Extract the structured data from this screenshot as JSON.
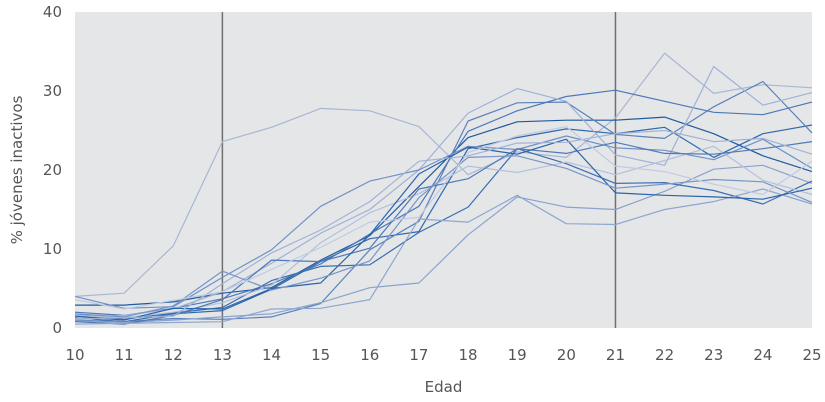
{
  "chart_data": {
    "type": "line",
    "xlabel": "Edad",
    "ylabel": "% jóvenes inactivos",
    "xlim": [
      10,
      25
    ],
    "ylim": [
      0,
      40
    ],
    "x_ticks": [
      10,
      11,
      12,
      13,
      14,
      15,
      16,
      17,
      18,
      19,
      20,
      21,
      22,
      23,
      24,
      25
    ],
    "y_ticks": [
      0,
      10,
      20,
      30,
      40
    ],
    "grid": false,
    "background": "#e5e6e8",
    "reference_lines_x": [
      13,
      21
    ],
    "reference_line_color": "#707070",
    "x": [
      10,
      11,
      12,
      13,
      14,
      15,
      16,
      17,
      18,
      19,
      20,
      21,
      22,
      23,
      24,
      25
    ],
    "series": [
      {
        "color": "#a8b7d3",
        "values": [
          4.0,
          4.4,
          10.4,
          23.6,
          25.4,
          27.8,
          27.5,
          25.5,
          19.4,
          22.3,
          21.6,
          26.6,
          34.8,
          29.7,
          30.8,
          30.4
        ]
      },
      {
        "color": "#1f5a9e",
        "values": [
          2.9,
          2.9,
          3.3,
          4.4,
          5.1,
          8.6,
          11.7,
          17.9,
          24.1,
          26.1,
          26.3,
          26.3,
          26.7,
          24.6,
          21.8,
          19.8
        ]
      },
      {
        "color": "#2f69ad",
        "values": [
          1.3,
          0.8,
          1.8,
          2.2,
          4.9,
          8.4,
          11.3,
          12.2,
          22.7,
          24.1,
          25.2,
          24.6,
          25.4,
          21.6,
          24.6,
          25.7
        ]
      },
      {
        "color": "#5b82bd",
        "values": [
          1.0,
          0.8,
          1.2,
          1.1,
          1.4,
          3.1,
          9.9,
          13.5,
          26.2,
          28.5,
          28.6,
          24.5,
          24.0,
          28.0,
          31.2,
          24.7
        ]
      },
      {
        "color": "#8aa3cc",
        "values": [
          0.9,
          0.7,
          1.0,
          1.4,
          1.8,
          3.2,
          5.1,
          5.7,
          11.8,
          16.6,
          15.3,
          15.0,
          17.3,
          20.1,
          20.6,
          18.3
        ]
      },
      {
        "color": "#4d78b8",
        "values": [
          2.0,
          1.6,
          2.5,
          3.7,
          5.6,
          8.1,
          11.9,
          15.4,
          24.9,
          27.5,
          29.3,
          30.1,
          28.7,
          27.3,
          27.0,
          28.6
        ]
      },
      {
        "color": "#9fb2d6",
        "values": [
          1.2,
          1.6,
          2.4,
          4.6,
          8.2,
          12.0,
          15.0,
          20.0,
          27.2,
          30.3,
          28.7,
          21.9,
          20.6,
          33.1,
          28.2,
          29.8
        ]
      },
      {
        "color": "#3a6eb0",
        "values": [
          1.8,
          1.1,
          1.9,
          2.6,
          6.0,
          7.8,
          8.0,
          12.1,
          15.3,
          22.7,
          20.8,
          18.3,
          18.4,
          17.4,
          15.7,
          18.6
        ]
      },
      {
        "color": "#6f91c6",
        "values": [
          4.0,
          2.5,
          2.7,
          6.4,
          9.9,
          15.4,
          18.6,
          20.0,
          23.0,
          22.6,
          24.3,
          22.8,
          22.5,
          21.3,
          23.9,
          20.2
        ]
      },
      {
        "color": "#b3c0da",
        "values": [
          1.6,
          1.3,
          2.0,
          3.2,
          5.4,
          10.8,
          14.6,
          17.0,
          20.5,
          19.7,
          21.0,
          19.4,
          21.2,
          23.0,
          18.7,
          16.9
        ]
      },
      {
        "color": "#5079b8",
        "values": [
          0.8,
          0.5,
          1.6,
          3.6,
          8.6,
          8.4,
          10.1,
          17.6,
          18.9,
          22.7,
          22.1,
          23.5,
          22.1,
          22.0,
          22.7,
          23.6
        ]
      },
      {
        "color": "#8ea7cf",
        "values": [
          0.5,
          0.6,
          0.7,
          0.8,
          2.4,
          2.5,
          3.6,
          13.8,
          13.4,
          16.8,
          13.2,
          13.1,
          15.0,
          16.0,
          17.6,
          15.7
        ]
      },
      {
        "color": "#2b63a8",
        "values": [
          1.5,
          1.0,
          2.5,
          2.4,
          5.0,
          5.7,
          11.8,
          19.5,
          22.9,
          22.0,
          23.9,
          17.1,
          16.8,
          16.6,
          16.3,
          17.7
        ]
      },
      {
        "color": "#a0b3d4",
        "values": [
          1.1,
          1.3,
          1.5,
          5.6,
          9.5,
          12.4,
          16.0,
          21.1,
          21.8,
          23.4,
          23.5,
          24.6,
          25.0,
          23.6,
          24.0,
          22.0
        ]
      },
      {
        "color": "#7795c7",
        "values": [
          1.8,
          1.4,
          2.8,
          7.2,
          4.8,
          6.3,
          8.5,
          16.5,
          21.6,
          21.8,
          20.2,
          17.7,
          18.2,
          18.8,
          18.5,
          15.9
        ]
      },
      {
        "color": "#c0cbe0",
        "values": [
          3.6,
          2.4,
          3.5,
          4.6,
          7.4,
          10.2,
          13.4,
          14.0,
          22.2,
          24.3,
          25.5,
          20.5,
          19.8,
          18.2,
          16.9,
          21.1
        ]
      }
    ]
  }
}
